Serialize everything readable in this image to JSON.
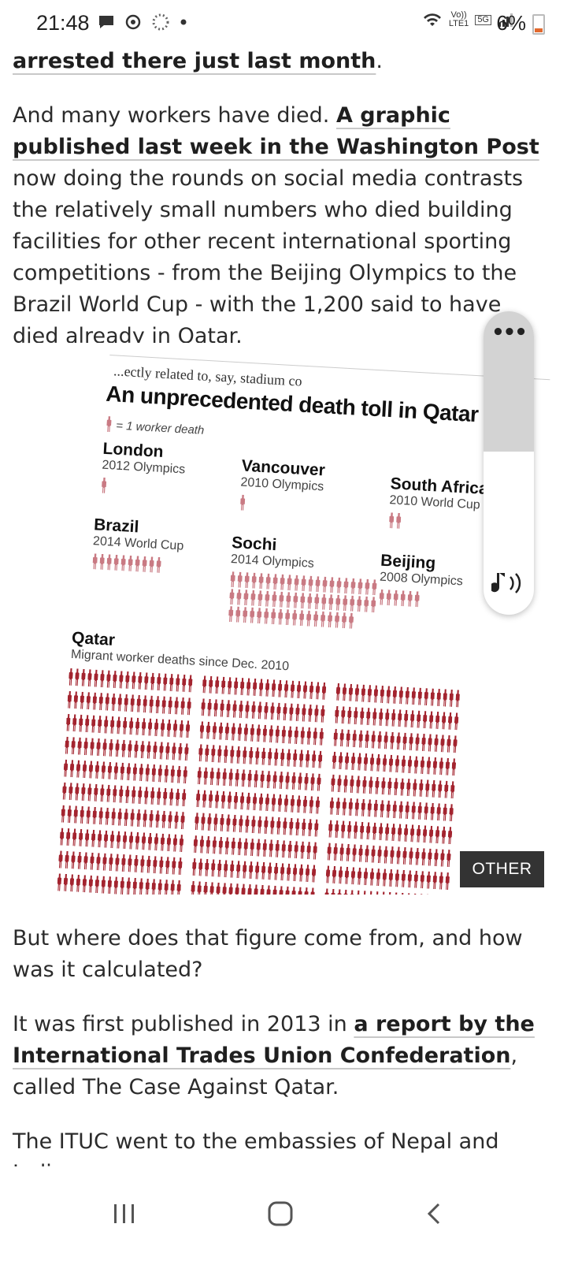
{
  "status_bar": {
    "time": "21:48",
    "battery": "6%",
    "network_label_top": "Vo))",
    "network_label_bottom": "LTE1",
    "network_type": "5G",
    "icons_left": [
      "message-icon",
      "sync-icon",
      "loading-icon",
      "dot-icon"
    ],
    "icons_right": [
      "wifi-icon",
      "signal-icon",
      "battery-icon"
    ]
  },
  "article": {
    "top_link": "arrested there just last month",
    "top_link_suffix": ".",
    "p1_text1": "And many workers have died. ",
    "p1_link": "A graphic published last week in the Washington Post",
    "p1_text2": " now doing the rounds on social media contrasts the relatively small numbers who died building facilities for other recent international sporting competitions - from the Beijing Olympics to the Brazil World Cup - with the 1,200 said to have died already in Qatar.",
    "p2": "But where does that figure come from, and how was it calculated?",
    "p3_text1": "It was first published in 2013 in ",
    "p3_link": "a report by the International Trades Union Confederation",
    "p3_text2": ", called The Case Against Qatar.",
    "p4": "The ITUC went to the embassies of Nepal and India,"
  },
  "graphic": {
    "top_snippet": "...ectly related to, say, stadium co",
    "title": "An unprecedented death toll in Qatar",
    "legend": "= 1 worker death",
    "events": [
      {
        "name": "London",
        "sub": "2012 Olympics",
        "deaths": 1
      },
      {
        "name": "Vancouver",
        "sub": "2010 Olympics",
        "deaths": 1
      },
      {
        "name": "South Africa",
        "sub": "2010 World Cup",
        "deaths": 2
      },
      {
        "name": "Brazil",
        "sub": "2014 World Cup",
        "deaths": 10
      },
      {
        "name": "Sochi",
        "sub": "2014 Olympics",
        "deaths": 60
      },
      {
        "name": "Beijing",
        "sub": "2008 Olympics",
        "deaths": 6
      },
      {
        "name": "Qatar",
        "sub": "Migrant worker deaths since Dec. 2010",
        "deaths": 1200
      }
    ],
    "tag": "OTHER"
  },
  "widget": {
    "menu_label": "•••",
    "audio_icon": "audio-icon"
  },
  "nav": {
    "buttons": [
      "recent-apps-icon",
      "home-icon",
      "back-icon"
    ]
  }
}
